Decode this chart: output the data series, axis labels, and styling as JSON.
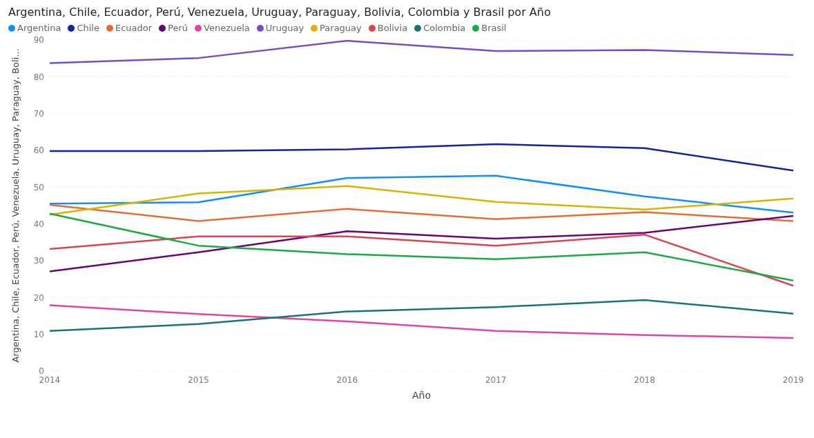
{
  "chart_data": {
    "type": "line",
    "title": "Argentina, Chile, Ecuador, Perú, Venezuela, Uruguay, Paraguay, Bolivia, Colombia y Brasil por Año",
    "xlabel": "Año",
    "ylabel": "Argentina, Chile, Ecuador, Perú, Venezuela, Uruguay, Paraguay, Boli...",
    "categories": [
      "2014",
      "2015",
      "2016",
      "2017",
      "2018",
      "2019"
    ],
    "series": [
      {
        "name": "Argentina",
        "color": "#118dff",
        "values": [
          45.5,
          45.9,
          52.5,
          53.1,
          47.5,
          43.1
        ]
      },
      {
        "name": "Chile",
        "color": "#12239e",
        "values": [
          59.8,
          59.8,
          60.3,
          61.7,
          60.6,
          54.5
        ]
      },
      {
        "name": "Ecuador",
        "color": "#e66c37",
        "values": [
          45.2,
          40.8,
          44.1,
          41.3,
          43.2,
          40.8
        ]
      },
      {
        "name": "Perú",
        "color": "#6b007b",
        "values": [
          27.1,
          32.3,
          38.0,
          36.0,
          37.6,
          42.2
        ]
      },
      {
        "name": "Venezuela",
        "color": "#e044a7",
        "values": [
          17.9,
          15.5,
          13.5,
          10.9,
          9.8,
          9.0
        ]
      },
      {
        "name": "Uruguay",
        "color": "#744ec2",
        "values": [
          83.7,
          85.1,
          89.8,
          87.0,
          87.3,
          85.9
        ]
      },
      {
        "name": "Paraguay",
        "color": "#d9b300",
        "values": [
          42.5,
          48.3,
          50.3,
          46.0,
          43.9,
          46.9
        ]
      },
      {
        "name": "Bolivia",
        "color": "#d64550",
        "values": [
          33.2,
          36.6,
          36.6,
          34.1,
          37.1,
          23.2
        ]
      },
      {
        "name": "Colombia",
        "color": "#197278",
        "values": [
          10.9,
          12.8,
          16.2,
          17.4,
          19.3,
          15.6
        ]
      },
      {
        "name": "Brasil",
        "color": "#1aab40",
        "values": [
          42.8,
          34.1,
          31.8,
          30.4,
          32.3,
          24.6
        ]
      }
    ],
    "ylim": [
      0,
      90
    ],
    "yticks": [
      0,
      10,
      20,
      30,
      40,
      50,
      60,
      70,
      80,
      90
    ],
    "grid": "y",
    "legend": "top left",
    "marker": "none",
    "line_style": "solid"
  }
}
